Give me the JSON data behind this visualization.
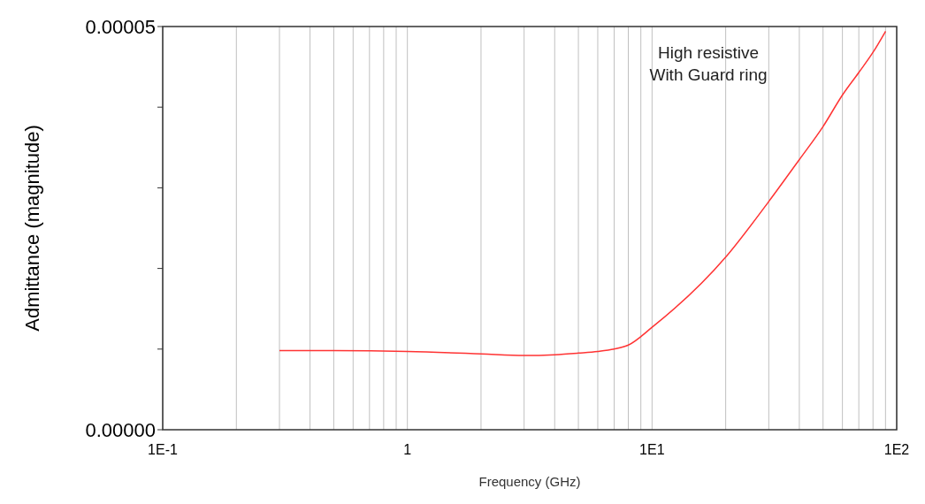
{
  "chart_data": {
    "type": "line",
    "xlabel": "Frequency (GHz)",
    "ylabel": "Admittance (magnitude)",
    "log": "x",
    "x": [
      0.3,
      0.5,
      1,
      2,
      3,
      4,
      5,
      6,
      7,
      8,
      10,
      20,
      30,
      40,
      50,
      60,
      70,
      80,
      90
    ],
    "series": [
      {
        "color": "#ff3333",
        "values": [
          9.8e-06,
          9.8e-06,
          9.7e-06,
          9.4e-06,
          9.2e-06,
          9.3e-06,
          9.5e-06,
          9.7e-06,
          1e-05,
          1.05e-05,
          1.27e-05,
          2.14e-05,
          2.83e-05,
          3.35e-05,
          3.76e-05,
          4.15e-05,
          4.43e-05,
          4.68e-05,
          4.94e-05
        ]
      }
    ],
    "xlim": [
      0.1,
      100
    ],
    "ylim": [
      0,
      5e-05
    ],
    "xticks": [
      {
        "value": 0.1,
        "label": "1E-1"
      },
      {
        "value": 0.2,
        "label": null
      },
      {
        "value": 0.3,
        "label": null
      },
      {
        "value": 0.4,
        "label": null
      },
      {
        "value": 0.5,
        "label": null
      },
      {
        "value": 0.6,
        "label": null
      },
      {
        "value": 0.7,
        "label": null
      },
      {
        "value": 0.8,
        "label": null
      },
      {
        "value": 0.9,
        "label": null
      },
      1,
      {
        "value": 2,
        "label": null
      },
      {
        "value": 3,
        "label": null
      },
      {
        "value": 4,
        "label": null
      },
      {
        "value": 5,
        "label": null
      },
      {
        "value": 6,
        "label": null
      },
      {
        "value": 7,
        "label": null
      },
      {
        "value": 8,
        "label": null
      },
      {
        "value": 9,
        "label": null
      },
      {
        "value": 10,
        "label": "1E1"
      },
      {
        "value": 20,
        "label": null
      },
      {
        "value": 30,
        "label": null
      },
      {
        "value": 40,
        "label": null
      },
      {
        "value": 50,
        "label": null
      },
      {
        "value": 60,
        "label": null
      },
      {
        "value": 70,
        "label": null
      },
      {
        "value": 80,
        "label": null
      },
      {
        "value": 90,
        "label": null
      },
      {
        "value": 100,
        "label": "1E2"
      }
    ],
    "yticks": [
      {
        "value": 0,
        "label": "0.00000"
      },
      {
        "value": 1e-05,
        "label": null
      },
      {
        "value": 2e-05,
        "label": null
      },
      {
        "value": 3e-05,
        "label": null
      },
      {
        "value": 4e-05,
        "label": null
      },
      {
        "value": 5e-05,
        "label": "0.00005"
      }
    ],
    "grid": "x",
    "marker": "none",
    "line_style": "solid",
    "annotations": [
      "High resistive\nWith Guard ring"
    ]
  }
}
